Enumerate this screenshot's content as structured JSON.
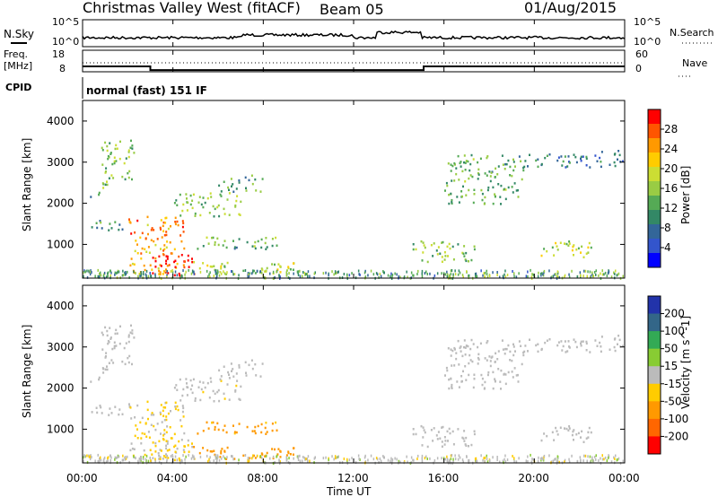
{
  "header": {
    "station": "Christmas Valley West (fitACF)",
    "beam": "Beam 05",
    "date": "01/Aug/2015"
  },
  "noise_panel": {
    "left_label": "N.Sky",
    "right_label": "N.Search",
    "ticks_left": [
      "10^5",
      "10^0"
    ],
    "ticks_right": [
      "10^5",
      "10^0"
    ]
  },
  "freq_panel": {
    "left_label_1": "Freq.",
    "left_label_2": "[MHz]",
    "right_label": "Nave",
    "ticks_left": [
      "18",
      "8"
    ],
    "ticks_right": [
      "60",
      "0"
    ],
    "cpid_label": "CPID",
    "mode_text": "normal (fast) 151 IF"
  },
  "x_ticks": [
    "00:00",
    "04:00",
    "08:00",
    "12:00",
    "16:00",
    "20:00",
    "00:00"
  ],
  "x_label": "Time UT",
  "power_panel": {
    "ylabel": "Slant Range [km]",
    "yticks": [
      "4000",
      "3000",
      "2000",
      "1000"
    ],
    "colorbar_title": "Power [dB]",
    "colorbar_ticks": [
      "28",
      "24",
      "20",
      "16",
      "12",
      "8",
      "4"
    ],
    "colors": [
      "#ff0000",
      "#ff5500",
      "#ff9900",
      "#ffcc00",
      "#ccdd33",
      "#99cc44",
      "#55aa55",
      "#338866",
      "#336699",
      "#3355cc",
      "#0000ff"
    ]
  },
  "velocity_panel": {
    "ylabel": "Slant Range [km]",
    "yticks": [
      "4000",
      "3000",
      "2000",
      "1000"
    ],
    "colorbar_title": "Velocity [m s^-1]",
    "colorbar_ticks": [
      "200",
      "100",
      "50",
      "15",
      "-15",
      "-50",
      "-100",
      "-200"
    ],
    "colors": [
      "#2233aa",
      "#336688",
      "#33aa55",
      "#88cc33",
      "#bbbbbb",
      "#ffcc00",
      "#ff9900",
      "#ff6600",
      "#ff0000"
    ]
  },
  "chart_data": {
    "type": "heatmap",
    "x_range_hours": [
      0,
      24
    ],
    "y_range_km": [
      180,
      4500
    ],
    "frequency_mhz": [
      {
        "t": 0,
        "value": 10.5
      },
      {
        "t": 3,
        "value": 8.8
      },
      {
        "t": 15.1,
        "value": 10.5
      },
      {
        "t": 24,
        "value": 10.5
      }
    ],
    "echo_regions": [
      {
        "t0": 0.8,
        "t1": 2.3,
        "r0": 2400,
        "r1": 3600,
        "power_db": 14,
        "velocity": 0
      },
      {
        "t0": 0.2,
        "t1": 1.0,
        "r0": 2150,
        "r1": 2300,
        "power_db": 10,
        "velocity": 0
      },
      {
        "t0": 0.3,
        "t1": 1.8,
        "r0": 1300,
        "r1": 1600,
        "power_db": 10,
        "velocity": 0
      },
      {
        "t0": 2.0,
        "t1": 4.5,
        "r0": 300,
        "r1": 1700,
        "power_db": 24,
        "velocity": -15
      },
      {
        "t0": 3.0,
        "t1": 5.0,
        "r0": 250,
        "r1": 800,
        "power_db": 30,
        "velocity": -20
      },
      {
        "t0": 4.0,
        "t1": 7.0,
        "r0": 1700,
        "r1": 2300,
        "power_db": 14,
        "velocity": -5
      },
      {
        "t0": 6.0,
        "t1": 8.0,
        "r0": 2300,
        "r1": 2700,
        "power_db": 10,
        "velocity": 0
      },
      {
        "t0": 5.0,
        "t1": 9.0,
        "r0": 900,
        "r1": 1200,
        "power_db": 12,
        "velocity": -60
      },
      {
        "t0": 4.5,
        "t1": 9.5,
        "r0": 300,
        "r1": 600,
        "power_db": 16,
        "velocity": -80
      },
      {
        "t0": 14.5,
        "t1": 17.5,
        "r0": 600,
        "r1": 1100,
        "power_db": 14,
        "velocity": 0
      },
      {
        "t0": 16.0,
        "t1": 19.5,
        "r0": 2000,
        "r1": 3200,
        "power_db": 12,
        "velocity": 0
      },
      {
        "t0": 20.0,
        "t1": 22.5,
        "r0": 700,
        "r1": 1100,
        "power_db": 16,
        "velocity": 0
      },
      {
        "t0": 19.5,
        "t1": 24,
        "r0": 2900,
        "r1": 3300,
        "power_db": 8,
        "velocity": 0
      }
    ]
  }
}
